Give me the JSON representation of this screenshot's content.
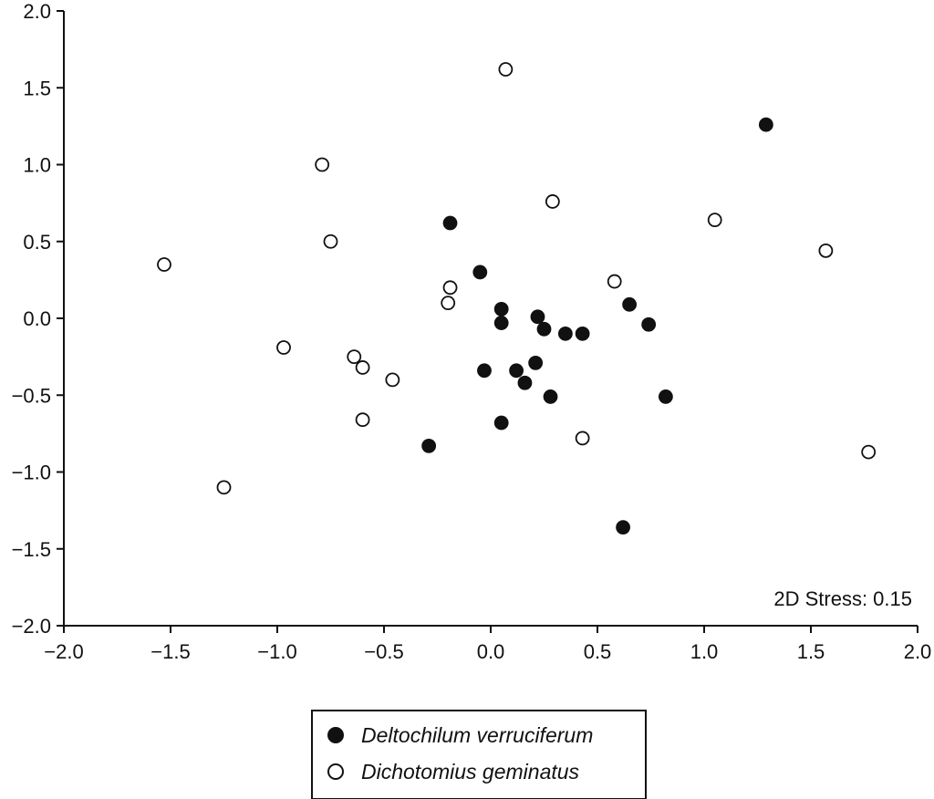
{
  "chart_data": {
    "type": "scatter",
    "title": "",
    "xlabel": "",
    "ylabel": "",
    "xlim": [
      -2.0,
      2.0
    ],
    "ylim": [
      -2.0,
      2.0
    ],
    "xticks": [
      "−2.0",
      "−1.5",
      "−1.0",
      "−0.5",
      "0.0",
      "0.5",
      "1.0",
      "1.5",
      "2.0"
    ],
    "yticks": [
      "2.0",
      "1.5",
      "1.0",
      "0.5",
      "0.0",
      "−0.5",
      "−1.0",
      "−1.5",
      "−2.0"
    ],
    "xtick_values": [
      -2.0,
      -1.5,
      -1.0,
      -0.5,
      0.0,
      0.5,
      1.0,
      1.5,
      2.0
    ],
    "ytick_values": [
      2.0,
      1.5,
      1.0,
      0.5,
      0.0,
      -0.5,
      -1.0,
      -1.5,
      -2.0
    ],
    "grid": false,
    "legend_position": "bottom-center",
    "annotation": "2D Stress: 0.15",
    "series": [
      {
        "name": "Deltochilum verruciferum",
        "marker": "filled-circle",
        "color": "#111111",
        "points": [
          {
            "x": 1.29,
            "y": 1.26
          },
          {
            "x": -0.19,
            "y": 0.62
          },
          {
            "x": -0.05,
            "y": 0.3
          },
          {
            "x": 0.05,
            "y": 0.06
          },
          {
            "x": 0.05,
            "y": -0.03
          },
          {
            "x": 0.22,
            "y": 0.01
          },
          {
            "x": 0.25,
            "y": -0.07
          },
          {
            "x": 0.35,
            "y": -0.1
          },
          {
            "x": 0.43,
            "y": -0.1
          },
          {
            "x": 0.65,
            "y": 0.09
          },
          {
            "x": 0.74,
            "y": -0.04
          },
          {
            "x": -0.03,
            "y": -0.34
          },
          {
            "x": 0.12,
            "y": -0.34
          },
          {
            "x": 0.16,
            "y": -0.42
          },
          {
            "x": 0.21,
            "y": -0.29
          },
          {
            "x": 0.28,
            "y": -0.51
          },
          {
            "x": 0.82,
            "y": -0.51
          },
          {
            "x": 0.05,
            "y": -0.68
          },
          {
            "x": -0.29,
            "y": -0.83
          },
          {
            "x": 0.62,
            "y": -1.36
          }
        ]
      },
      {
        "name": "Dichotomius geminatus",
        "marker": "open-circle",
        "color": "#111111",
        "points": [
          {
            "x": 0.07,
            "y": 1.62
          },
          {
            "x": -0.79,
            "y": 1.0
          },
          {
            "x": 0.29,
            "y": 0.76
          },
          {
            "x": 1.05,
            "y": 0.64
          },
          {
            "x": -0.75,
            "y": 0.5
          },
          {
            "x": 1.57,
            "y": 0.44
          },
          {
            "x": -1.53,
            "y": 0.35
          },
          {
            "x": -0.19,
            "y": 0.2
          },
          {
            "x": -0.2,
            "y": 0.1
          },
          {
            "x": 0.58,
            "y": 0.24
          },
          {
            "x": -0.97,
            "y": -0.19
          },
          {
            "x": -0.64,
            "y": -0.25
          },
          {
            "x": -0.6,
            "y": -0.32
          },
          {
            "x": -0.46,
            "y": -0.4
          },
          {
            "x": -0.6,
            "y": -0.66
          },
          {
            "x": 0.43,
            "y": -0.78
          },
          {
            "x": 1.77,
            "y": -0.87
          },
          {
            "x": -1.25,
            "y": -1.1
          }
        ]
      }
    ]
  }
}
